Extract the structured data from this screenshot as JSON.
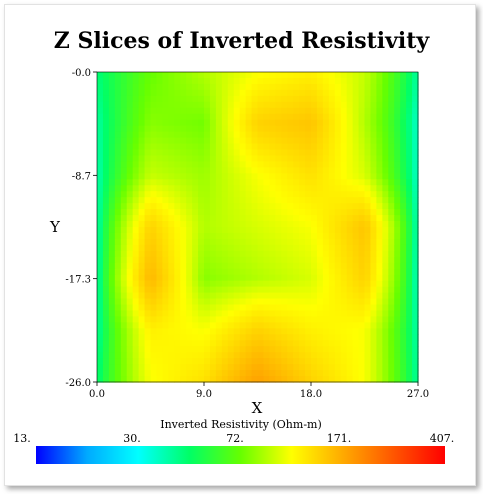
{
  "chart_data": {
    "type": "heatmap",
    "title": "Z Slices of Inverted Resistivity",
    "xlabel": "X",
    "ylabel": "Y",
    "xlim": [
      0,
      27
    ],
    "ylim": [
      -26,
      0
    ],
    "x_ticks": [
      "0.0",
      "9.0",
      "18.0",
      "27.0"
    ],
    "y_ticks": [
      "-0.0",
      "-8.7",
      "-17.3",
      "-26.0"
    ],
    "colorbar": {
      "label": "Inverted Resistivity (Ohm-m)",
      "scale": "log",
      "range": [
        13,
        407
      ],
      "tick_labels": [
        "13.",
        "30.",
        "72.",
        "171.",
        "407."
      ],
      "colors": [
        "#0000ff",
        "#00aaff",
        "#00ffff",
        "#00ff66",
        "#66ff00",
        "#ffff00",
        "#ffaa00",
        "#ff5500",
        "#ff0000"
      ]
    },
    "grid_x": [
      0,
      4.5,
      9,
      13.5,
      18,
      22.5,
      27
    ],
    "grid_y": [
      0,
      -4.33,
      -8.67,
      -13,
      -17.33,
      -21.67,
      -26
    ],
    "values": [
      [
        45,
        72,
        90,
        110,
        120,
        95,
        40
      ],
      [
        40,
        80,
        75,
        140,
        150,
        90,
        35
      ],
      [
        38,
        95,
        85,
        110,
        130,
        100,
        35
      ],
      [
        38,
        140,
        90,
        100,
        110,
        150,
        36
      ],
      [
        38,
        160,
        80,
        90,
        100,
        140,
        35
      ],
      [
        40,
        120,
        110,
        140,
        120,
        110,
        38
      ],
      [
        45,
        110,
        130,
        180,
        140,
        110,
        40
      ]
    ]
  }
}
